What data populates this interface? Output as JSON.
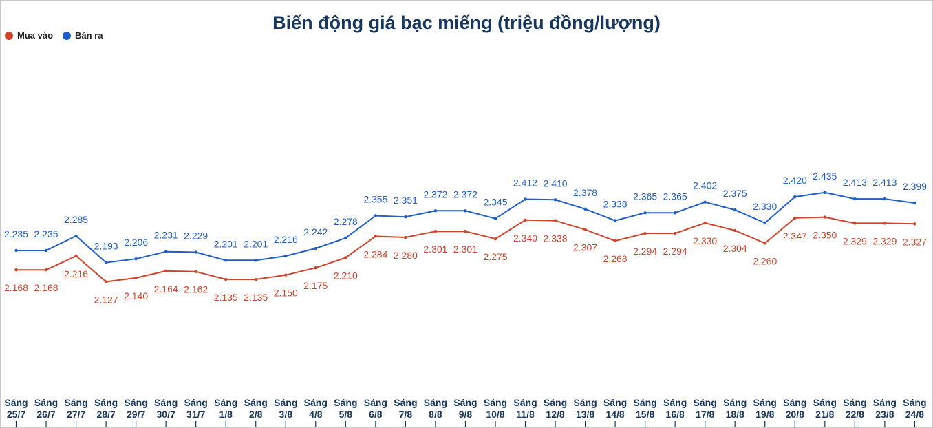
{
  "chart_data": {
    "type": "line",
    "title": "Biến động giá bạc miếng (triệu đồng/lượng)",
    "categories": [
      [
        "Sáng",
        "25/7"
      ],
      [
        "Sáng",
        "26/7"
      ],
      [
        "Sáng",
        "27/7"
      ],
      [
        "Sáng",
        "28/7"
      ],
      [
        "Sáng",
        "29/7"
      ],
      [
        "Sáng",
        "30/7"
      ],
      [
        "Sáng",
        "31/7"
      ],
      [
        "Sáng",
        "1/8"
      ],
      [
        "Sáng",
        "2/8"
      ],
      [
        "Sáng",
        "3/8"
      ],
      [
        "Sáng",
        "4/8"
      ],
      [
        "Sáng",
        "5/8"
      ],
      [
        "Sáng",
        "6/8"
      ],
      [
        "Sáng",
        "7/8"
      ],
      [
        "Sáng",
        "8/8"
      ],
      [
        "Sáng",
        "9/8"
      ],
      [
        "Sáng",
        "10/8"
      ],
      [
        "Sáng",
        "11/8"
      ],
      [
        "Sáng",
        "12/8"
      ],
      [
        "Sáng",
        "13/8"
      ],
      [
        "Sáng",
        "14/8"
      ],
      [
        "Sáng",
        "15/8"
      ],
      [
        "Sáng",
        "16/8"
      ],
      [
        "Sáng",
        "17/8"
      ],
      [
        "Sáng",
        "18/8"
      ],
      [
        "Sáng",
        "19/8"
      ],
      [
        "Sáng",
        "20/8"
      ],
      [
        "Sáng",
        "21/8"
      ],
      [
        "Sáng",
        "22/8"
      ],
      [
        "Sáng",
        "23/8"
      ],
      [
        "Sáng",
        "24/8"
      ]
    ],
    "series": [
      {
        "name": "Mua vào",
        "color": "#d0432b",
        "values": [
          2.168,
          2.168,
          2.216,
          2.127,
          2.14,
          2.164,
          2.162,
          2.135,
          2.135,
          2.15,
          2.175,
          2.21,
          2.284,
          2.28,
          2.301,
          2.301,
          2.275,
          2.34,
          2.338,
          2.307,
          2.268,
          2.294,
          2.294,
          2.33,
          2.304,
          2.26,
          2.347,
          2.35,
          2.329,
          2.329,
          2.327
        ],
        "labels": [
          "2.168",
          "2.168",
          "2.216",
          "2.127",
          "2.140",
          "2.164",
          "2.162",
          "2.135",
          "2.135",
          "2.150",
          "2.175",
          "2.210",
          "2.284",
          "2.280",
          "2.301",
          "2.301",
          "2.275",
          "2.340",
          "2.338",
          "2.307",
          "2.268",
          "2.294",
          "2.294",
          "2.330",
          "2.304",
          "2.260",
          "2.347",
          "2.350",
          "2.329",
          "2.329",
          "2.327"
        ]
      },
      {
        "name": "Bán ra",
        "color": "#1f5dc9",
        "values": [
          2.235,
          2.235,
          2.285,
          2.193,
          2.206,
          2.231,
          2.229,
          2.201,
          2.201,
          2.216,
          2.242,
          2.278,
          2.355,
          2.351,
          2.372,
          2.372,
          2.345,
          2.412,
          2.41,
          2.378,
          2.338,
          2.365,
          2.365,
          2.402,
          2.375,
          2.33,
          2.42,
          2.435,
          2.413,
          2.413,
          2.399
        ],
        "labels": [
          "2.235",
          "2.235",
          "2.285",
          "2.193",
          "2.206",
          "2.231",
          "2.229",
          "2.201",
          "2.201",
          "2.216",
          "2.242",
          "2.278",
          "2.355",
          "2.351",
          "2.372",
          "2.372",
          "2.345",
          "2.412",
          "2.410",
          "2.378",
          "2.338",
          "2.365",
          "2.365",
          "2.402",
          "2.375",
          "2.330",
          "2.420",
          "2.435",
          "2.413",
          "2.413",
          "2.399"
        ]
      }
    ],
    "legend_position": "top-left",
    "grid": false
  }
}
